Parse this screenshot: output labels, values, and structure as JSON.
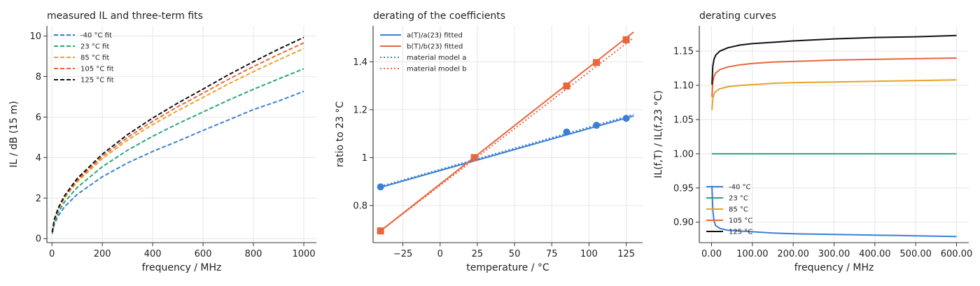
{
  "chart_data": [
    {
      "type": "line",
      "title": "measured IL and three-term fits",
      "xlabel": "frequency / MHz",
      "ylabel": "IL / dB (15 m)",
      "xlim": [
        -20,
        1050
      ],
      "ylim": [
        -0.2,
        10.5
      ],
      "xticks": [
        0,
        200,
        400,
        600,
        800,
        1000
      ],
      "yticks": [
        0,
        2,
        4,
        6,
        8,
        10
      ],
      "grid": true,
      "legend_position": "top-left",
      "series": [
        {
          "name": "-40 °C fit",
          "color": "#3a7fd5",
          "dash": true,
          "x": [
            1,
            10,
            25,
            50,
            100,
            200,
            300,
            400,
            500,
            600,
            700,
            800,
            900,
            1000
          ],
          "y": [
            0.24,
            0.73,
            1.12,
            1.57,
            2.18,
            3.05,
            3.73,
            4.3,
            4.81,
            5.34,
            5.85,
            6.37,
            6.79,
            7.27
          ]
        },
        {
          "name": "23 °C fit",
          "color": "#27a67d",
          "dash": true,
          "x": [
            1,
            10,
            25,
            50,
            100,
            200,
            300,
            400,
            500,
            600,
            700,
            800,
            900,
            1000
          ],
          "y": [
            0.27,
            0.83,
            1.29,
            1.81,
            2.52,
            3.55,
            4.36,
            5.05,
            5.67,
            6.25,
            6.83,
            7.37,
            7.88,
            8.38
          ]
        },
        {
          "name": "85 °C fit",
          "color": "#e9a227",
          "dash": true,
          "x": [
            1,
            10,
            25,
            50,
            100,
            200,
            300,
            400,
            500,
            600,
            700,
            800,
            900,
            1000
          ],
          "y": [
            0.3,
            0.92,
            1.43,
            2.01,
            2.8,
            3.95,
            4.86,
            5.63,
            6.32,
            6.97,
            7.63,
            8.24,
            8.82,
            9.38
          ]
        },
        {
          "name": "105 °C fit",
          "color": "#e8663d",
          "dash": true,
          "x": [
            1,
            10,
            25,
            50,
            100,
            200,
            300,
            400,
            500,
            600,
            700,
            800,
            900,
            1000
          ],
          "y": [
            0.31,
            0.95,
            1.47,
            2.06,
            2.88,
            4.06,
            4.99,
            5.79,
            6.51,
            7.18,
            7.86,
            8.49,
            9.09,
            9.66
          ]
        },
        {
          "name": "125 °C fit",
          "color": "#111111",
          "dash": true,
          "x": [
            1,
            10,
            25,
            50,
            100,
            200,
            300,
            400,
            500,
            600,
            700,
            800,
            900,
            1000
          ],
          "y": [
            0.32,
            0.97,
            1.51,
            2.12,
            2.96,
            4.17,
            5.13,
            5.95,
            6.69,
            7.38,
            8.08,
            8.73,
            9.35,
            9.93
          ]
        }
      ]
    },
    {
      "type": "line",
      "title": "derating of the coefficients",
      "xlabel": "temperature / °C",
      "ylabel": "ratio to 23 °C",
      "xlim": [
        -45,
        136
      ],
      "ylim": [
        0.645,
        1.55
      ],
      "xticks": [
        -25,
        0,
        25,
        50,
        75,
        100,
        125
      ],
      "yticks": [
        0.8,
        1.0,
        1.2,
        1.4
      ],
      "grid": true,
      "legend_position": "top-left",
      "series": [
        {
          "name": "a(T)/a(23) fitted",
          "color": "#3a7fd5",
          "dash": false,
          "x": [
            -40,
            130
          ],
          "y": [
            0.876,
            1.174
          ],
          "markers": {
            "shape": "circle",
            "x": [
              -40,
              23,
              85,
              105,
              125
            ],
            "y": [
              0.878,
              1.0,
              1.107,
              1.135,
              1.164
            ]
          }
        },
        {
          "name": "b(T)/b(23) fitted",
          "color": "#e8663d",
          "dash": false,
          "x": [
            -40,
            130
          ],
          "y": [
            0.694,
            1.524
          ],
          "markers": {
            "shape": "square",
            "x": [
              -40,
              23,
              85,
              105,
              125
            ],
            "y": [
              0.694,
              1.0,
              1.299,
              1.397,
              1.492
            ]
          }
        },
        {
          "name": "material model a",
          "color": "#3a7fd5",
          "dash": true,
          "x": [
            -40,
            130
          ],
          "y": [
            0.88,
            1.18
          ]
        },
        {
          "name": "material model b",
          "color": "#e8663d",
          "dash": true,
          "x": [
            -40,
            130
          ],
          "y": [
            0.694,
            1.5
          ]
        }
      ]
    },
    {
      "type": "line",
      "title": "derating curves",
      "xlabel": "frequency / MHz",
      "ylabel": "IL(f,T) / IL(f,23 °C)",
      "xlim": [
        -30,
        630
      ],
      "ylim": [
        0.87,
        1.187
      ],
      "xticks": [
        0,
        100,
        200,
        300,
        400,
        500,
        600
      ],
      "yticks": [
        0.9,
        0.95,
        1.0,
        1.05,
        1.1,
        1.15
      ],
      "grid": true,
      "legend_position": "bottom-left",
      "series": [
        {
          "name": "-40 °C",
          "color": "#3a7fd5",
          "dash": false,
          "x": [
            1,
            3,
            6,
            10,
            20,
            40,
            70,
            100,
            150,
            200,
            300,
            400,
            500,
            600
          ],
          "y": [
            0.953,
            0.918,
            0.902,
            0.895,
            0.891,
            0.888,
            0.887,
            0.886,
            0.884,
            0.883,
            0.882,
            0.881,
            0.88,
            0.879
          ]
        },
        {
          "name": "23 °C",
          "color": "#27a67d",
          "dash": false,
          "x": [
            1,
            600
          ],
          "y": [
            1.0,
            1.0
          ]
        },
        {
          "name": "85 °C",
          "color": "#e9a227",
          "dash": false,
          "x": [
            1,
            3,
            6,
            10,
            20,
            40,
            70,
            100,
            150,
            200,
            300,
            400,
            500,
            600
          ],
          "y": [
            1.064,
            1.08,
            1.087,
            1.091,
            1.095,
            1.098,
            1.1,
            1.101,
            1.103,
            1.104,
            1.105,
            1.106,
            1.107,
            1.108
          ]
        },
        {
          "name": "105 °C",
          "color": "#e8663d",
          "dash": false,
          "x": [
            1,
            3,
            6,
            10,
            20,
            40,
            70,
            100,
            150,
            200,
            300,
            400,
            500,
            600
          ],
          "y": [
            1.083,
            1.105,
            1.113,
            1.118,
            1.123,
            1.127,
            1.13,
            1.132,
            1.134,
            1.135,
            1.137,
            1.138,
            1.139,
            1.14
          ]
        },
        {
          "name": "125 °C",
          "color": "#111111",
          "dash": false,
          "x": [
            1,
            3,
            6,
            10,
            20,
            40,
            70,
            100,
            150,
            200,
            300,
            400,
            500,
            600
          ],
          "y": [
            1.101,
            1.128,
            1.138,
            1.144,
            1.15,
            1.155,
            1.159,
            1.161,
            1.163,
            1.165,
            1.168,
            1.17,
            1.171,
            1.173
          ]
        }
      ]
    }
  ]
}
